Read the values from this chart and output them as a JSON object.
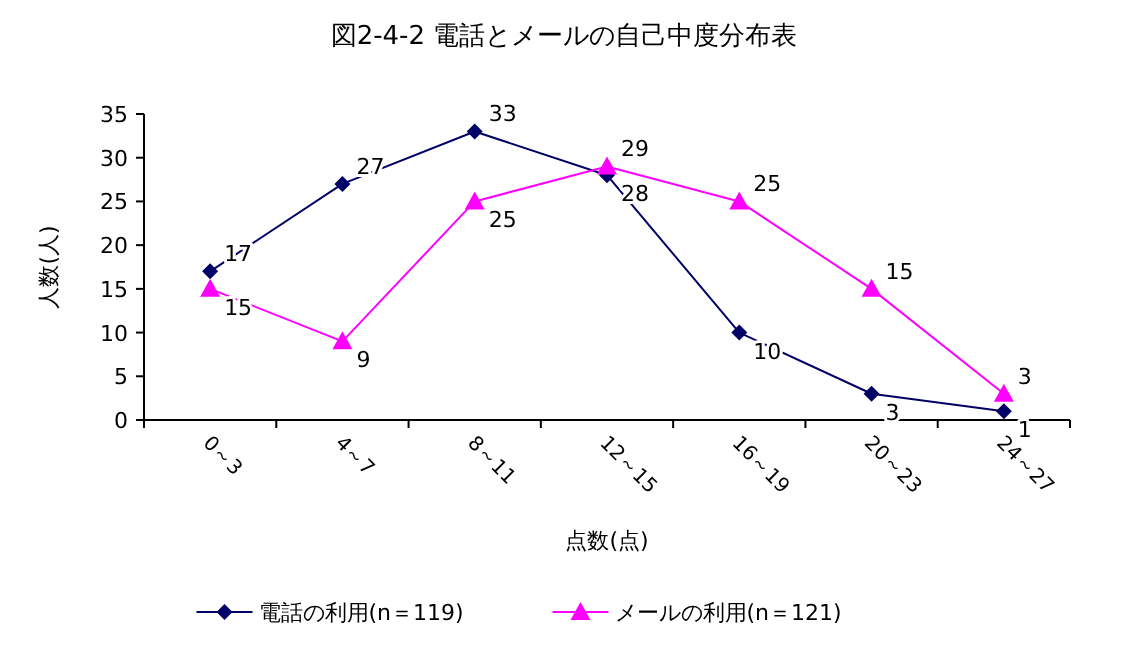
{
  "chart_data": {
    "type": "line",
    "title": "図2-4-2 電話とメールの自己中度分布表",
    "xlabel": "点数(点)",
    "ylabel": "人数(人)",
    "categories": [
      "0～3",
      "4～7",
      "8～11",
      "12～15",
      "16～19",
      "20～23",
      "24～27"
    ],
    "series": [
      {
        "name": "電話の利用(n＝119)",
        "color": "#000066",
        "marker": "diamond",
        "values": [
          17,
          27,
          33,
          28,
          10,
          3,
          1
        ]
      },
      {
        "name": "メールの利用(n＝121)",
        "color": "#ff00ff",
        "marker": "triangle",
        "values": [
          15,
          9,
          25,
          29,
          25,
          15,
          3
        ]
      }
    ],
    "ylim": [
      0,
      35
    ],
    "yticks": [
      0,
      5,
      10,
      15,
      20,
      25,
      30,
      35
    ],
    "data_labels": true,
    "legend": "bottom",
    "grid": false
  }
}
